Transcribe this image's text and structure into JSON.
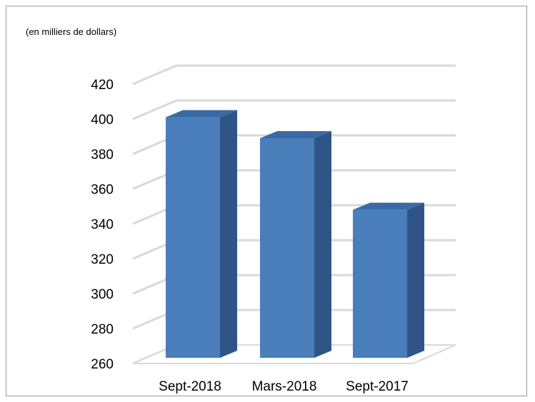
{
  "chart_data": {
    "type": "bar",
    "subtitle": "(en milliers de dollars)",
    "categories": [
      "Sept-2018",
      "Mars-2018",
      "Sept-2017"
    ],
    "values": [
      401,
      389,
      348
    ],
    "ylim": [
      260,
      420
    ],
    "yticks": [
      260,
      280,
      300,
      320,
      340,
      360,
      380,
      400,
      420
    ],
    "grid": true,
    "three_d": true,
    "legend": "none",
    "colors": {
      "bar_front": "#4a7ebb",
      "bar_side": "#2f5587",
      "bar_top": "#3a6aa3",
      "gridline": "#d9d9d9",
      "floor": "#d9d9d9"
    }
  }
}
